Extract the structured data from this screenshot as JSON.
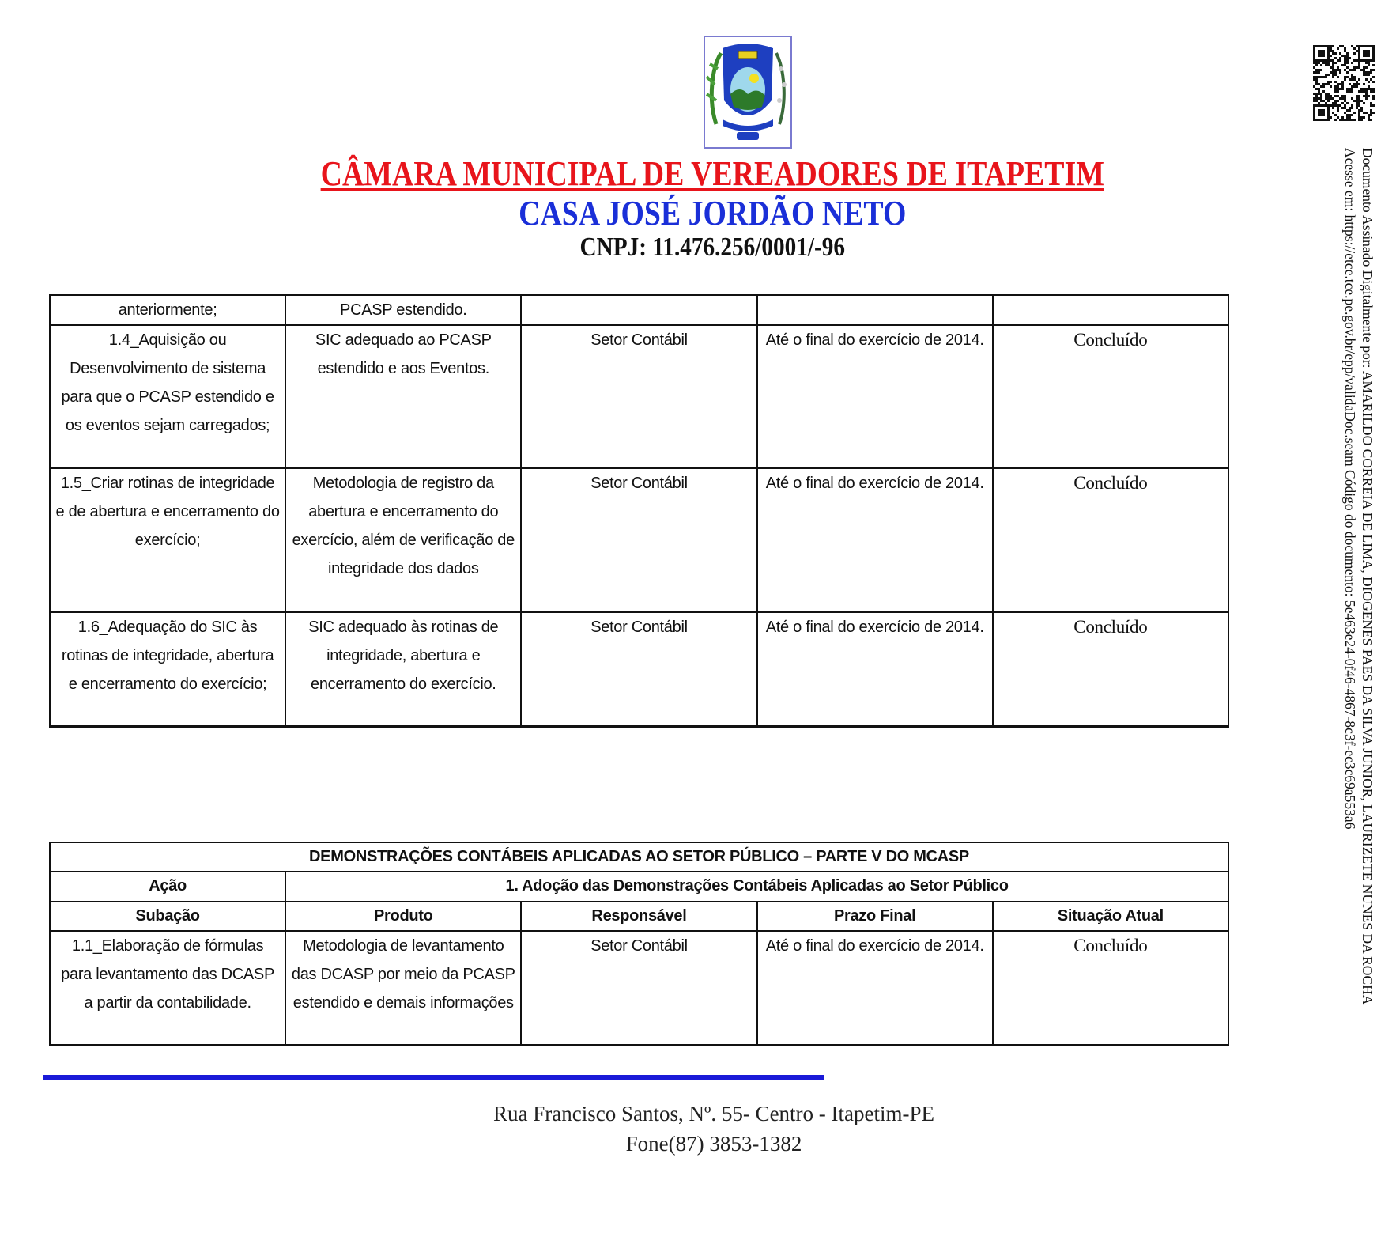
{
  "header": {
    "title": "CÂMARA MUNICIPAL DE VEREADORES DE ITAPETIM",
    "subtitle": "CASA JOSÉ JORDÃO NETO",
    "cnpj": "CNPJ: 11.476.256/0001/-96",
    "colors": {
      "title": "#e8141b",
      "subtitle": "#1a2fd8",
      "rule": "#1a1ad8"
    }
  },
  "table1": {
    "rows": [
      [
        "anteriormente;",
        "PCASP estendido.",
        "",
        "",
        ""
      ],
      [
        "1.4_Aquisição ou Desenvolvimento de sistema para que o PCASP estendido e os eventos sejam carregados;",
        "SIC adequado ao PCASP estendido e aos Eventos.",
        "Setor Contábil",
        "Até o final do exercício de 2014.",
        "Concluído"
      ],
      [
        "1.5_Criar rotinas de integridade e de abertura e encerramento do exercício;",
        "Metodologia de registro da abertura e encerramento do exercício, além de verificação de integridade dos dados",
        "Setor Contábil",
        "Até o final do exercício de 2014.",
        "Concluído"
      ],
      [
        "1.6_Adequação do SIC às rotinas de integridade, abertura e  encerramento do exercício;",
        "SIC adequado às rotinas de integridade, abertura e encerramento do exercício.",
        "Setor Contábil",
        "Até o final do exercício de 2014.",
        "Concluído"
      ]
    ]
  },
  "table2": {
    "title": "DEMONSTRAÇÕES CONTÁBEIS APLICADAS AO SETOR PÚBLICO – PARTE V DO MCASP",
    "acao_label": "Ação",
    "acao_value": "1. Adoção das Demonstrações Contábeis Aplicadas ao Setor Público",
    "headers": [
      "Subação",
      "Produto",
      "Responsável",
      "Prazo Final",
      "Situação Atual"
    ],
    "rows": [
      [
        "1.1_Elaboração de fórmulas para levantamento das DCASP a partir da contabilidade.",
        "Metodologia de levantamento das DCASP por meio da PCASP estendido e demais informações",
        "Setor Contábil",
        "Até o final do exercício de 2014.",
        "Concluído"
      ]
    ]
  },
  "footer": {
    "address": "Rua Francisco Santos, Nº. 55- Centro - Itapetim-PE",
    "phone": "Fone(87) 3853-1382"
  },
  "signature": {
    "line1": "Documento Assinado Digitalmente por: AMARILDO CORREIA DE LIMA, DIOGENES PAES DA SILVA JUNIOR, LAURIZETE NUNES DA ROCHA",
    "line2": "Acesse em: https://etce.tce.pe.gov.br/epp/validaDoc.seam Código do documento: 5e463e24-0f46-4867-8c3f-ec3c69a553a6"
  }
}
